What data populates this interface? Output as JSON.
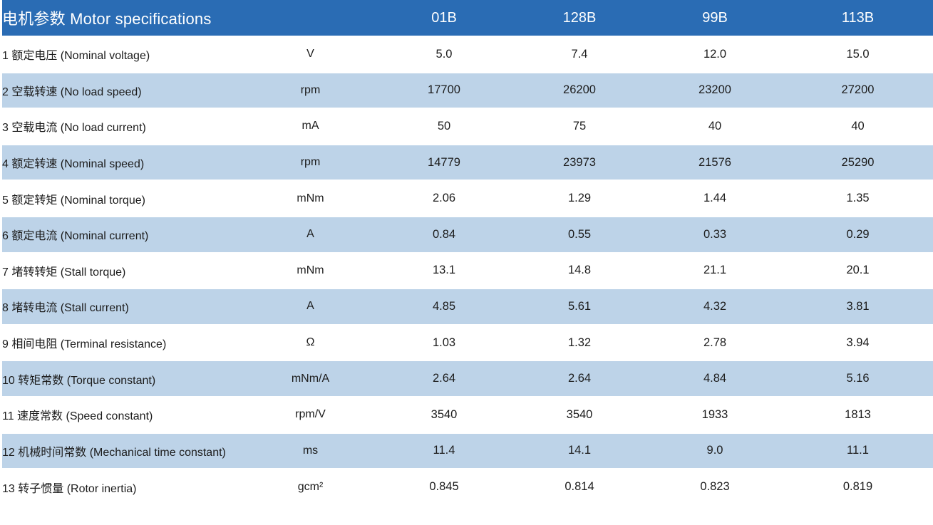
{
  "colors": {
    "header_bg": "#2a6cb4",
    "header_text": "#ffffff",
    "row_alt_bg": "#bdd3e8",
    "row_bg": "#ffffff",
    "text": "#1c1c1c"
  },
  "table": {
    "title": "电机参数  Motor specifications",
    "models": [
      "01B",
      "128B",
      "99B",
      "113B"
    ],
    "rows": [
      {
        "label": "1 额定电压 (Nominal voltage)",
        "unit": "V",
        "values": [
          "5.0",
          "7.4",
          "12.0",
          "15.0"
        ]
      },
      {
        "label": "2 空载转速 (No load speed)",
        "unit": "rpm",
        "values": [
          "17700",
          "26200",
          "23200",
          "27200"
        ]
      },
      {
        "label": "3 空载电流 (No load current)",
        "unit": "mA",
        "values": [
          "50",
          "75",
          "40",
          "40"
        ]
      },
      {
        "label": "4 额定转速 (Nominal speed)",
        "unit": "rpm",
        "values": [
          "14779",
          "23973",
          "21576",
          "25290"
        ]
      },
      {
        "label": "5 额定转矩 (Nominal torque)",
        "unit": "mNm",
        "values": [
          "2.06",
          "1.29",
          "1.44",
          "1.35"
        ]
      },
      {
        "label": "6 额定电流 (Nominal current)",
        "unit": "A",
        "values": [
          "0.84",
          "0.55",
          "0.33",
          "0.29"
        ]
      },
      {
        "label": "7 堵转转矩 (Stall torque)",
        "unit": "mNm",
        "values": [
          "13.1",
          "14.8",
          "21.1",
          "20.1"
        ]
      },
      {
        "label": "8 堵转电流 (Stall current)",
        "unit": "A",
        "values": [
          "4.85",
          "5.61",
          "4.32",
          "3.81"
        ]
      },
      {
        "label": "9 相间电阻 (Terminal resistance)",
        "unit": "Ω",
        "values": [
          "1.03",
          "1.32",
          "2.78",
          "3.94"
        ]
      },
      {
        "label": "10 转矩常数 (Torque constant)",
        "unit": "mNm/A",
        "values": [
          "2.64",
          "2.64",
          "4.84",
          "5.16"
        ]
      },
      {
        "label": "11 速度常数 (Speed constant)",
        "unit": "rpm/V",
        "values": [
          "3540",
          "3540",
          "1933",
          "1813"
        ]
      },
      {
        "label": "12 机械时间常数 (Mechanical time constant)",
        "unit": "ms",
        "values": [
          "11.4",
          "14.1",
          "9.0",
          "11.1"
        ]
      },
      {
        "label": "13 转子惯量 (Rotor inertia)",
        "unit": "gcm²",
        "values": [
          "0.845",
          "0.814",
          "0.823",
          "0.819"
        ]
      }
    ]
  }
}
